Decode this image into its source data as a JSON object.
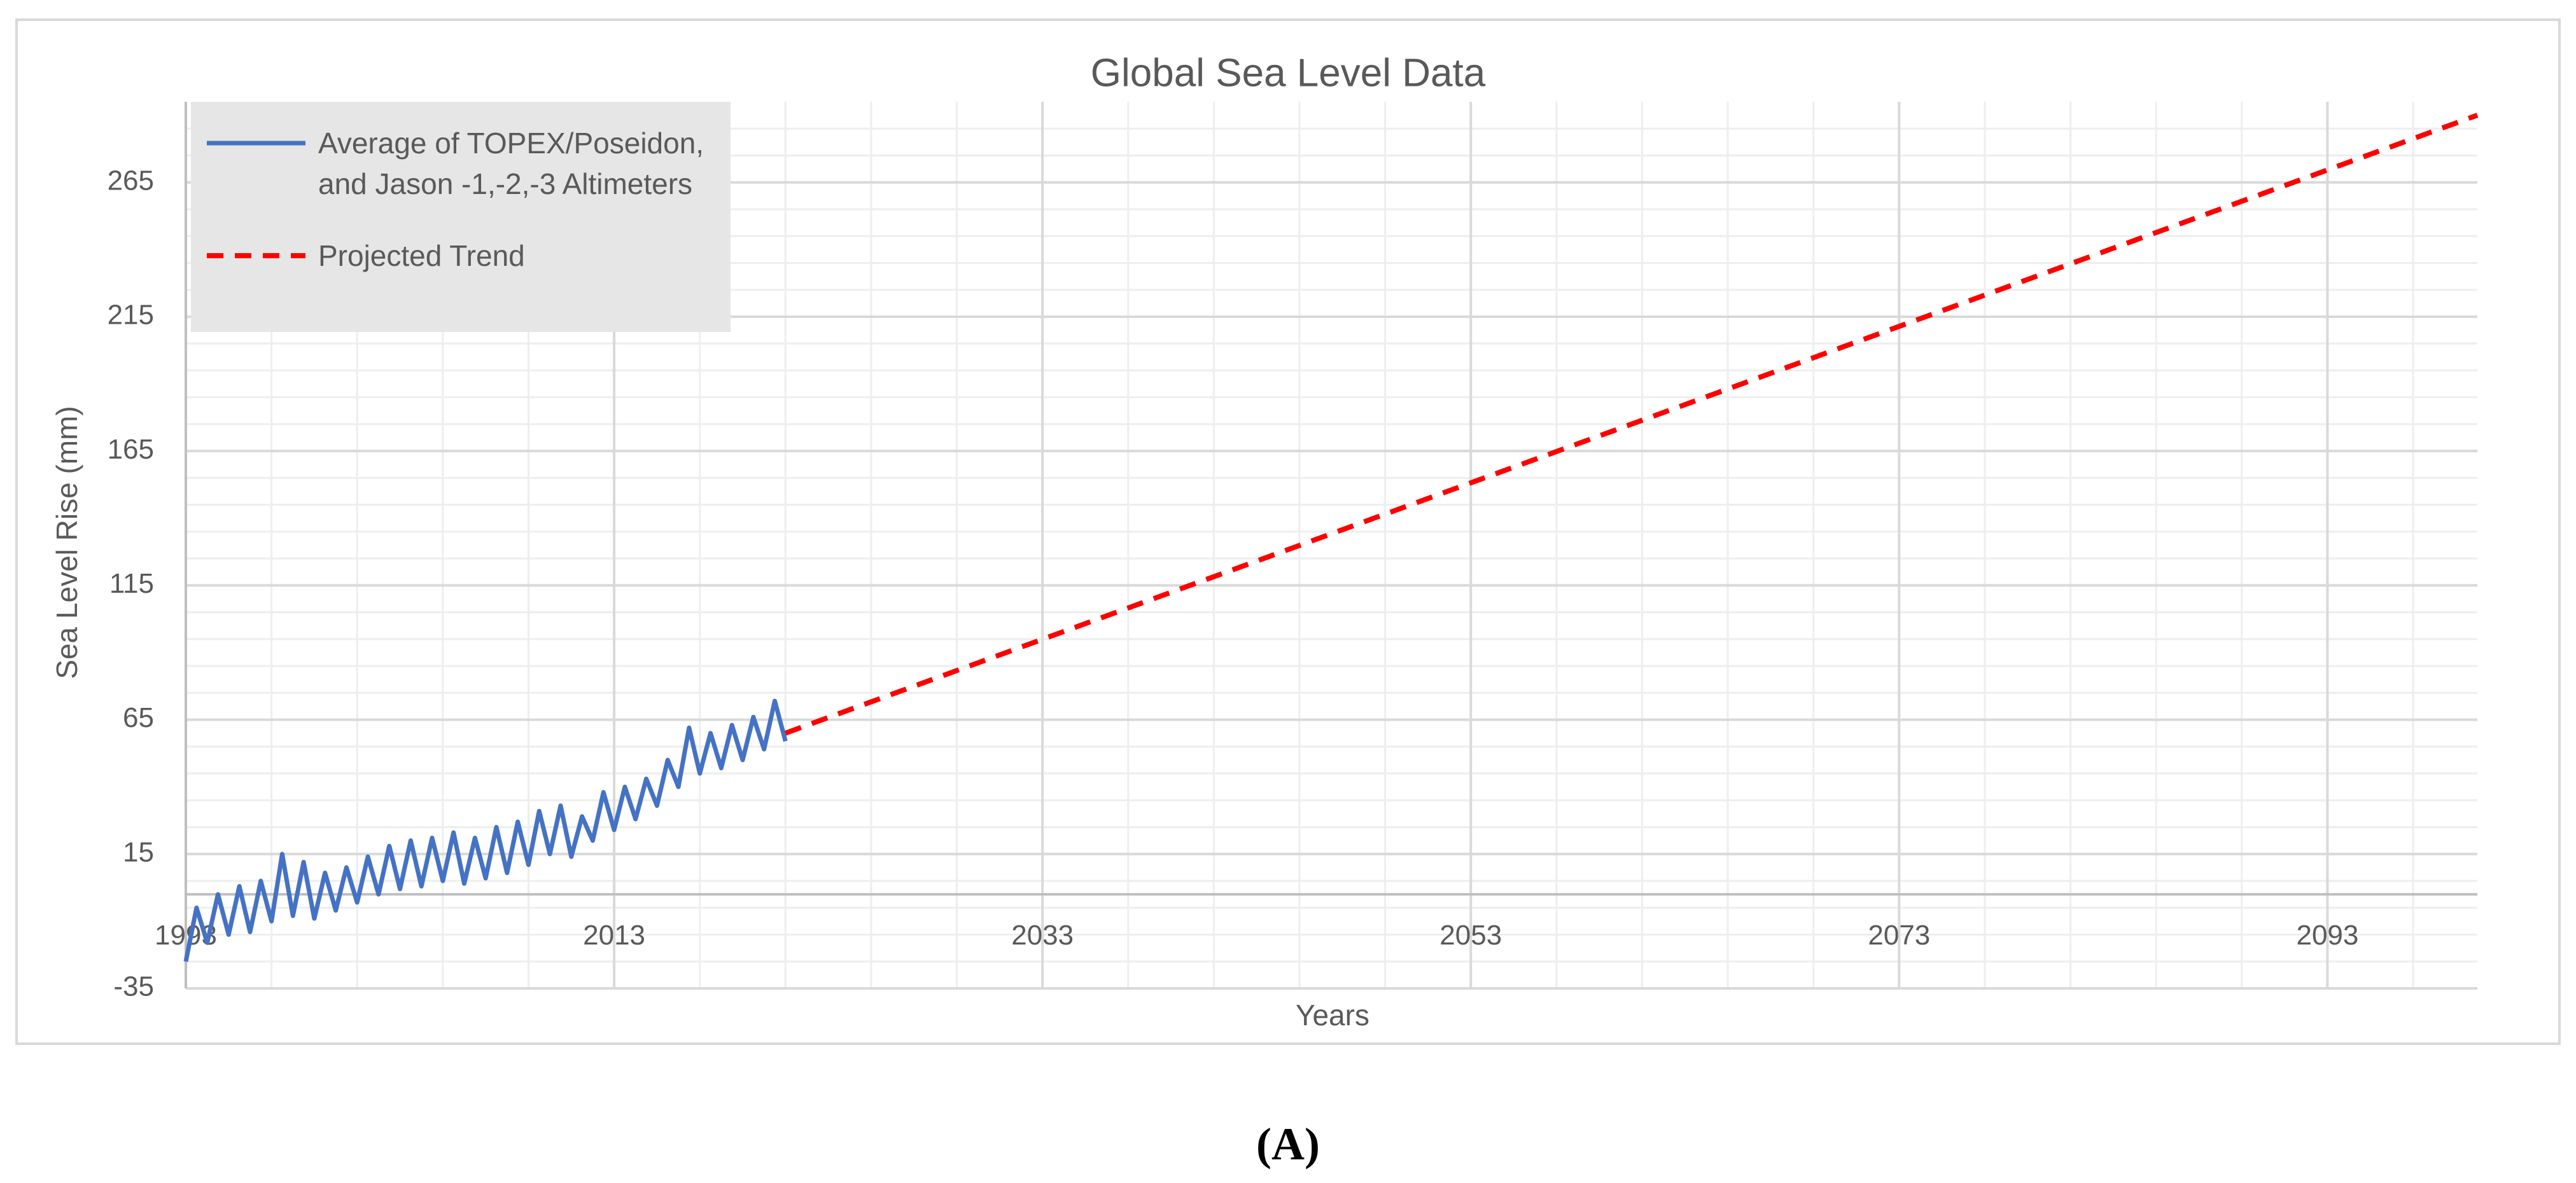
{
  "chart_data": {
    "type": "line",
    "title": "Global Sea Level Data",
    "x_label": "Years",
    "y_label": "Sea Level Rise (mm)",
    "xlim": [
      1993,
      2100
    ],
    "xticks": [
      1993,
      2013,
      2033,
      2053,
      2073,
      2093
    ],
    "ylim": [
      -35,
      295
    ],
    "yticks": [
      -35,
      15,
      65,
      115,
      165,
      215,
      265
    ],
    "grid": true,
    "legend": "upper left",
    "series": [
      {
        "name": "Average of TOPEX/Poseidon, and Jason -1,-2,-3 Altimeters",
        "color": "#4472c4",
        "style": "solid",
        "x": [
          1993,
          1993.5,
          1994,
          1994.5,
          1995,
          1995.5,
          1996,
          1996.5,
          1997,
          1997.5,
          1998,
          1998.5,
          1999,
          1999.5,
          2000,
          2000.5,
          2001,
          2001.5,
          2002,
          2002.5,
          2003,
          2003.5,
          2004,
          2004.5,
          2005,
          2005.5,
          2006,
          2006.5,
          2007,
          2007.5,
          2008,
          2008.5,
          2009,
          2009.5,
          2010,
          2010.5,
          2011,
          2011.5,
          2012,
          2012.5,
          2013,
          2013.5,
          2014,
          2014.5,
          2015,
          2015.5,
          2016,
          2016.5,
          2017,
          2017.5,
          2018,
          2018.5,
          2019,
          2019.5,
          2020,
          2020.5,
          2021
        ],
        "values": [
          -25,
          -5,
          -18,
          0,
          -15,
          3,
          -14,
          5,
          -10,
          15,
          -8,
          12,
          -9,
          8,
          -6,
          10,
          -3,
          14,
          0,
          18,
          2,
          20,
          3,
          21,
          5,
          23,
          4,
          21,
          6,
          25,
          8,
          27,
          11,
          31,
          15,
          33,
          14,
          29,
          20,
          38,
          24,
          40,
          28,
          43,
          33,
          50,
          40,
          62,
          45,
          60,
          47,
          63,
          50,
          66,
          54,
          72,
          57
        ]
      },
      {
        "name": "Projected Trend",
        "color": "#ff0000",
        "style": "dashed",
        "x": [
          2021,
          2100
        ],
        "values": [
          60,
          290
        ]
      }
    ]
  },
  "caption": "(A)"
}
